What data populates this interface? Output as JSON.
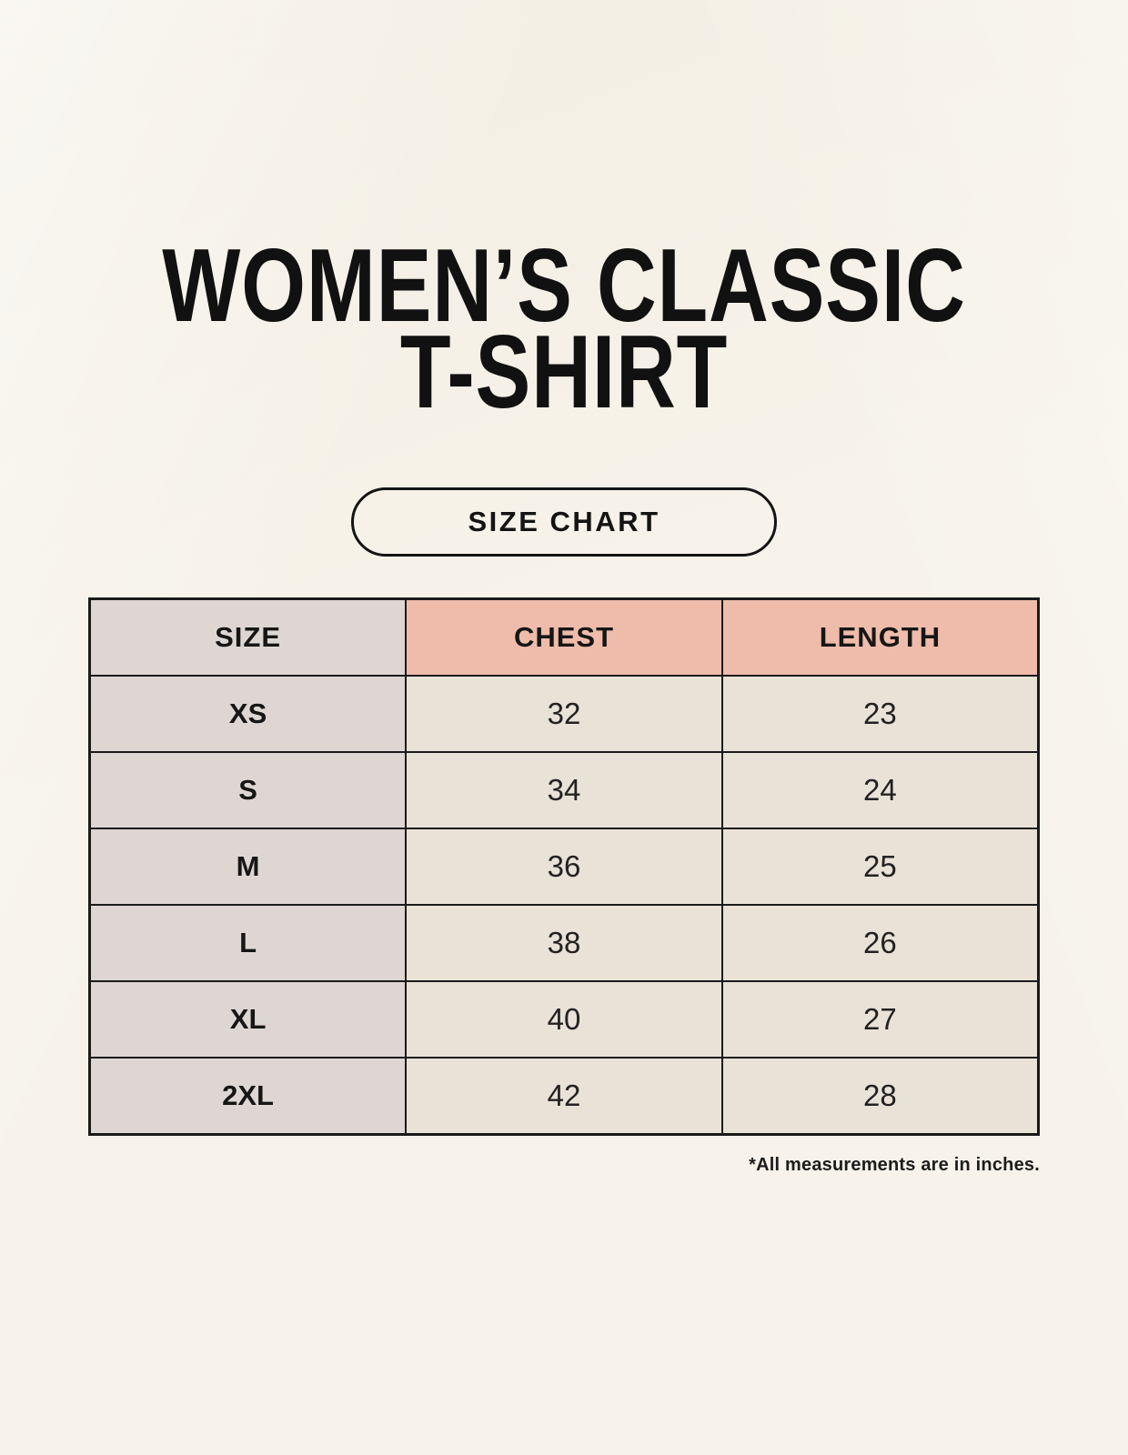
{
  "header": {
    "title_line1": "WOMEN’S CLASSIC",
    "title_line2": "T-SHIRT",
    "badge_label": "SIZE CHART"
  },
  "chart_data": {
    "type": "table",
    "title": "WOMEN’S CLASSIC T-SHIRT",
    "subtitle": "SIZE CHART",
    "columns": [
      "SIZE",
      "CHEST",
      "LENGTH"
    ],
    "rows": [
      [
        "XS",
        "32",
        "23"
      ],
      [
        "S",
        "34",
        "24"
      ],
      [
        "M",
        "36",
        "25"
      ],
      [
        "L",
        "38",
        "26"
      ],
      [
        "XL",
        "40",
        "27"
      ],
      [
        "2XL",
        "42",
        "28"
      ]
    ],
    "units_note": "*All measurements are in inches."
  },
  "footnote": {
    "text": "*All measurements are in inches."
  },
  "colors": {
    "page_background": "#f7f3ea",
    "size_column_bg": "#ddd6d2",
    "measure_header_bg": "#efbcab",
    "data_cell_bg": "#e9e2d7",
    "table_border": "#1a1a1a",
    "text": "#1c1c1c"
  }
}
